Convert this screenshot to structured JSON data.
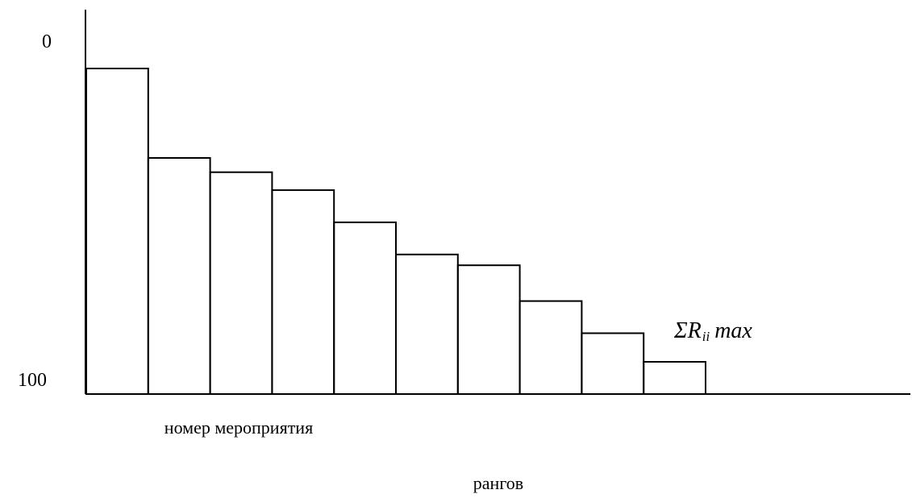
{
  "chart_data": {
    "type": "bar",
    "categories": [
      "",
      "",
      "",
      "",
      "",
      "",
      "",
      "",
      "",
      ""
    ],
    "values": [
      91,
      66,
      62,
      57,
      48,
      39,
      36,
      26,
      17,
      9
    ],
    "ylim": [
      0,
      100
    ],
    "y_axis_inverted": true,
    "y_tick_labels": [
      "0",
      "100"
    ],
    "xlabel": "номер мероприятия",
    "ylabel": "рангов",
    "annotation": {
      "sigma": "Σ",
      "r": "R",
      "subscript": "ii",
      "max": "max"
    },
    "grid": false,
    "legend": "none"
  }
}
